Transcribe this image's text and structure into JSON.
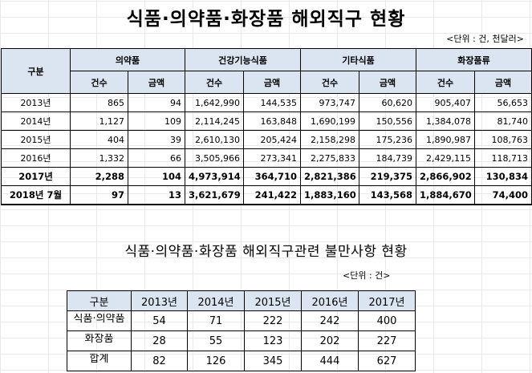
{
  "title": "식품·의약품·화장품 해외직구 현황",
  "unit": "<단위 : 건, 천달러>",
  "main_table": {
    "row_header": "구분",
    "groups": [
      "의약품",
      "건강기능식품",
      "기타식품",
      "화장품류"
    ],
    "sub_headers": [
      "건수",
      "금액"
    ],
    "rows": [
      {
        "year": "2013년",
        "values": [
          "865",
          "94",
          "1,642,990",
          "144,535",
          "973,747",
          "60,620",
          "905,407",
          "56,653"
        ],
        "bold": false
      },
      {
        "year": "2014년",
        "values": [
          "1,127",
          "109",
          "2,114,245",
          "163,848",
          "1,690,199",
          "150,556",
          "1,384,078",
          "81,740"
        ],
        "bold": false
      },
      {
        "year": "2015년",
        "values": [
          "404",
          "39",
          "2,610,130",
          "205,424",
          "2,158,298",
          "175,236",
          "1,890,987",
          "108,763"
        ],
        "bold": false
      },
      {
        "year": "2016년",
        "values": [
          "1,332",
          "66",
          "3,505,966",
          "273,341",
          "2,275,833",
          "184,739",
          "2,429,115",
          "118,713"
        ],
        "bold": false
      },
      {
        "year": "2017년",
        "values": [
          "2,288",
          "104",
          "4,973,914",
          "364,710",
          "2,821,386",
          "219,375",
          "2,866,902",
          "130,834"
        ],
        "bold": true
      },
      {
        "year": "2018년 7월",
        "values": [
          "97",
          "13",
          "3,621,679",
          "241,422",
          "1,883,160",
          "143,568",
          "1,884,670",
          "74,400"
        ],
        "bold": true
      }
    ]
  },
  "complaints": {
    "title": "식품·의약품·화장품 해외직구관련 불만사항 현황",
    "unit": "<단위 : 건>",
    "headers": [
      "구분",
      "2013년",
      "2014년",
      "2015년",
      "2016년",
      "2017년"
    ],
    "rows": [
      {
        "label": "식품·의약품",
        "values": [
          "54",
          "71",
          "222",
          "242",
          "400"
        ]
      },
      {
        "label": "화장품",
        "values": [
          "28",
          "55",
          "123",
          "202",
          "227"
        ]
      },
      {
        "label": "합계",
        "values": [
          "82",
          "126",
          "345",
          "444",
          "627"
        ]
      }
    ]
  },
  "colors": {
    "header_fill": "#dbe5f1",
    "border": "#000000",
    "gridline": "#d9d9d9"
  }
}
